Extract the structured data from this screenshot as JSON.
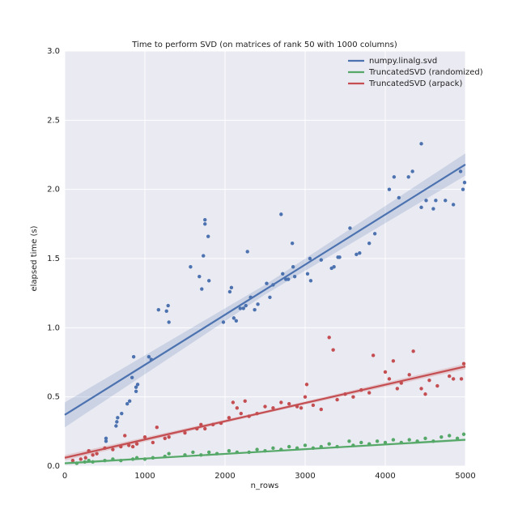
{
  "chart_data": {
    "type": "scatter",
    "title": "Time to perform SVD (on matrices of rank 50 with 1000 columns)",
    "x_label": "n_rows",
    "y_label": "elapsed time (s)",
    "xlim": [
      0,
      5000
    ],
    "ylim": [
      0,
      3
    ],
    "xticks": [
      0,
      1000,
      2000,
      3000,
      4000,
      5000
    ],
    "yticks": [
      {
        "value": 0,
        "label": "0.0"
      },
      {
        "value": 0.5,
        "label": "0.5"
      },
      {
        "value": 1,
        "label": "1.0"
      },
      {
        "value": 1.5,
        "label": "1.5"
      },
      {
        "value": 2,
        "label": "2.0"
      },
      {
        "value": 2.5,
        "label": "2.5"
      },
      {
        "value": 3,
        "label": "3.0"
      }
    ],
    "grid": true,
    "legend": "upper right",
    "series": [
      {
        "name": "numpy.linalg.svd",
        "color": "#4c72b0",
        "x": [
          515,
          515,
          640,
          650,
          660,
          710,
          780,
          810,
          840,
          860,
          890,
          890,
          910,
          1050,
          1080,
          1170,
          1270,
          1290,
          1300,
          1570,
          1680,
          1710,
          1730,
          1750,
          1750,
          1790,
          1800,
          1980,
          2060,
          2080,
          2110,
          2140,
          2190,
          2230,
          2260,
          2280,
          2320,
          2370,
          2410,
          2520,
          2560,
          2600,
          2700,
          2720,
          2760,
          2790,
          2840,
          2850,
          2870,
          3030,
          3060,
          3070,
          3200,
          3330,
          3360,
          3410,
          3430,
          3560,
          3640,
          3680,
          3800,
          3870,
          4050,
          4110,
          4170,
          4290,
          4340,
          4450,
          4450,
          4510,
          4600,
          4630,
          4750,
          4850,
          4940,
          4970,
          4990
        ],
        "values": [
          0.18,
          0.2,
          0.29,
          0.32,
          0.35,
          0.38,
          0.45,
          0.47,
          0.64,
          0.79,
          0.54,
          0.57,
          0.59,
          0.79,
          0.77,
          1.13,
          1.12,
          1.16,
          1.04,
          1.44,
          1.37,
          1.28,
          1.52,
          1.78,
          1.75,
          1.66,
          1.34,
          1.04,
          1.26,
          1.29,
          1.07,
          1.05,
          1.14,
          1.14,
          1.16,
          1.55,
          1.22,
          1.13,
          1.17,
          1.32,
          1.22,
          1.31,
          1.82,
          1.39,
          1.35,
          1.35,
          1.61,
          1.44,
          1.37,
          1.39,
          1.5,
          1.34,
          1.49,
          1.43,
          1.44,
          1.51,
          1.51,
          1.72,
          1.53,
          1.54,
          1.61,
          1.68,
          2.0,
          2.09,
          1.94,
          2.09,
          2.13,
          1.87,
          2.33,
          1.92,
          1.86,
          1.92,
          1.92,
          1.89,
          2.13,
          2.0,
          2.05
        ],
        "fit": {
          "x": [
            0,
            2500,
            5000
          ],
          "values": [
            0.37,
            1.275,
            2.18
          ],
          "lower": [
            0.28,
            1.24,
            2.1
          ],
          "upper": [
            0.46,
            1.31,
            2.26
          ]
        }
      },
      {
        "name": "TruncatedSVD (randomized)",
        "color": "#55a868",
        "x": [
          150,
          250,
          300,
          350,
          500,
          600,
          700,
          850,
          900,
          1000,
          1100,
          1250,
          1300,
          1500,
          1600,
          1700,
          1800,
          1900,
          2050,
          2150,
          2300,
          2400,
          2500,
          2600,
          2700,
          2800,
          2900,
          3000,
          3100,
          3200,
          3300,
          3400,
          3550,
          3600,
          3700,
          3800,
          3900,
          4000,
          4100,
          4200,
          4300,
          4400,
          4500,
          4600,
          4700,
          4800,
          4900,
          4980
        ],
        "values": [
          0.02,
          0.03,
          0.04,
          0.03,
          0.04,
          0.05,
          0.04,
          0.05,
          0.06,
          0.05,
          0.06,
          0.07,
          0.09,
          0.08,
          0.1,
          0.08,
          0.1,
          0.09,
          0.11,
          0.1,
          0.1,
          0.12,
          0.11,
          0.13,
          0.12,
          0.14,
          0.13,
          0.15,
          0.13,
          0.14,
          0.16,
          0.14,
          0.18,
          0.15,
          0.17,
          0.16,
          0.18,
          0.17,
          0.19,
          0.17,
          0.19,
          0.18,
          0.2,
          0.18,
          0.21,
          0.22,
          0.2,
          0.23
        ],
        "fit": {
          "x": [
            0,
            2500,
            5000
          ],
          "values": [
            0.02,
            0.105,
            0.19
          ],
          "lower": [
            0.01,
            0.1,
            0.18
          ],
          "upper": [
            0.03,
            0.11,
            0.2
          ]
        }
      },
      {
        "name": "TruncatedSVD (arpack)",
        "color": "#c44e52",
        "x": [
          100,
          200,
          260,
          300,
          350,
          400,
          500,
          600,
          700,
          750,
          800,
          850,
          900,
          1000,
          1100,
          1150,
          1250,
          1300,
          1500,
          1650,
          1700,
          1750,
          1850,
          1950,
          2050,
          2100,
          2150,
          2200,
          2250,
          2300,
          2400,
          2500,
          2600,
          2700,
          2800,
          2900,
          2950,
          3000,
          3020,
          3100,
          3200,
          3300,
          3350,
          3400,
          3500,
          3600,
          3700,
          3800,
          3850,
          4000,
          4050,
          4100,
          4150,
          4200,
          4300,
          4350,
          4450,
          4500,
          4550,
          4650,
          4800,
          4850,
          4950,
          4980
        ],
        "values": [
          0.04,
          0.05,
          0.06,
          0.11,
          0.08,
          0.09,
          0.13,
          0.12,
          0.14,
          0.22,
          0.15,
          0.14,
          0.16,
          0.21,
          0.17,
          0.28,
          0.2,
          0.21,
          0.24,
          0.27,
          0.3,
          0.27,
          0.3,
          0.31,
          0.35,
          0.46,
          0.42,
          0.38,
          0.47,
          0.36,
          0.38,
          0.43,
          0.42,
          0.46,
          0.45,
          0.43,
          0.42,
          0.5,
          0.59,
          0.44,
          0.41,
          0.93,
          0.84,
          0.48,
          0.52,
          0.5,
          0.55,
          0.53,
          0.8,
          0.68,
          0.63,
          0.76,
          0.56,
          0.6,
          0.66,
          0.83,
          0.56,
          0.52,
          0.62,
          0.58,
          0.65,
          0.63,
          0.63,
          0.74
        ],
        "fit": {
          "x": [
            0,
            2500,
            5000
          ],
          "values": [
            0.06,
            0.39,
            0.72
          ],
          "lower": [
            0.04,
            0.38,
            0.7
          ],
          "upper": [
            0.08,
            0.4,
            0.74
          ]
        }
      }
    ]
  }
}
